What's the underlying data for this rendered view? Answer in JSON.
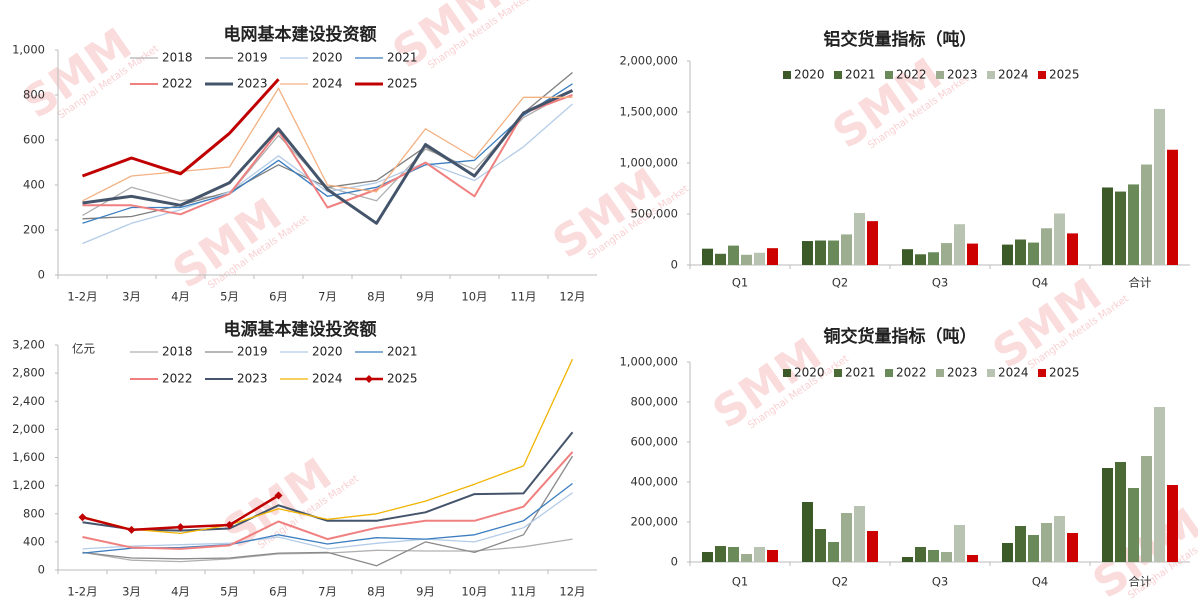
{
  "watermark": {
    "logo": "SMM",
    "text": "Shanghai Metals Market"
  },
  "chart_data": [
    {
      "type": "line",
      "title": "电网基本建设投资额",
      "categories": [
        "1-2月",
        "3月",
        "4月",
        "5月",
        "6月",
        "7月",
        "8月",
        "9月",
        "10月",
        "11月",
        "12月"
      ],
      "ylim": [
        0,
        1000
      ],
      "yticks": [
        0,
        200,
        400,
        600,
        800,
        {
          "value": 1000,
          "label": "1,000"
        }
      ],
      "series": [
        {
          "name": "2018",
          "color": "#b0b0b0",
          "values": [
            265,
            390,
            330,
            360,
            620,
            390,
            330,
            560,
            470,
            700,
            820
          ]
        },
        {
          "name": "2019",
          "color": "#7f7f7f",
          "values": [
            250,
            260,
            310,
            370,
            490,
            390,
            420,
            570,
            440,
            720,
            900
          ]
        },
        {
          "name": "2020",
          "color": "#b4cce8",
          "values": [
            140,
            230,
            290,
            370,
            530,
            370,
            410,
            500,
            420,
            570,
            760
          ]
        },
        {
          "name": "2021",
          "color": "#3c7ebf",
          "values": [
            230,
            300,
            300,
            360,
            510,
            350,
            390,
            490,
            510,
            710,
            850
          ]
        },
        {
          "name": "2022",
          "color": "#f08080",
          "line_width": 2,
          "values": [
            310,
            310,
            270,
            360,
            640,
            300,
            380,
            500,
            350,
            720,
            800
          ]
        },
        {
          "name": "2023",
          "color": "#44546a",
          "line_width": 3,
          "values": [
            320,
            350,
            310,
            410,
            650,
            380,
            230,
            580,
            440,
            720,
            820
          ]
        },
        {
          "name": "2024",
          "color": "#f4b183",
          "values": [
            330,
            440,
            460,
            480,
            830,
            400,
            370,
            650,
            520,
            790,
            790
          ]
        },
        {
          "name": "2025",
          "color": "#c00000",
          "line_width": 3,
          "values": [
            440,
            520,
            450,
            630,
            870,
            null,
            null,
            null,
            null,
            null,
            null
          ]
        }
      ]
    },
    {
      "type": "line",
      "title": "电源基本建设投资额",
      "y_label": "亿元",
      "categories": [
        "1-2月",
        "3月",
        "4月",
        "5月",
        "6月",
        "7月",
        "8月",
        "9月",
        "10月",
        "11月",
        "12月"
      ],
      "ylim": [
        0,
        3200
      ],
      "yticks": [
        0,
        400,
        800,
        {
          "value": 1200,
          "label": "1,200"
        },
        {
          "value": 1600,
          "label": "1,600"
        },
        {
          "value": 2000,
          "label": "2,000"
        },
        {
          "value": 2400,
          "label": "2,400"
        },
        {
          "value": 2800,
          "label": "2,800"
        },
        {
          "value": 3200,
          "label": "3,200"
        }
      ],
      "series": [
        {
          "name": "2018",
          "color": "#b0b0b0",
          "values": [
            250,
            140,
            120,
            160,
            230,
            240,
            280,
            270,
            270,
            330,
            440
          ]
        },
        {
          "name": "2019",
          "color": "#8a8a8a",
          "values": [
            250,
            170,
            160,
            170,
            240,
            250,
            60,
            400,
            250,
            500,
            1620
          ]
        },
        {
          "name": "2020",
          "color": "#b4cce8",
          "values": [
            300,
            340,
            360,
            380,
            470,
            300,
            380,
            440,
            400,
            600,
            1100
          ]
        },
        {
          "name": "2021",
          "color": "#3c7ebf",
          "values": [
            240,
            310,
            320,
            360,
            500,
            370,
            460,
            440,
            500,
            700,
            1230
          ]
        },
        {
          "name": "2022",
          "color": "#f08080",
          "line_width": 2,
          "values": [
            470,
            320,
            300,
            350,
            690,
            440,
            600,
            700,
            700,
            900,
            1680
          ]
        },
        {
          "name": "2023",
          "color": "#44546a",
          "line_width": 2,
          "values": [
            680,
            580,
            560,
            590,
            920,
            700,
            700,
            820,
            1080,
            1090,
            1960
          ]
        },
        {
          "name": "2024",
          "color": "#f0b400",
          "values": [
            760,
            580,
            520,
            640,
            870,
            720,
            800,
            980,
            1220,
            1480,
            3000
          ]
        },
        {
          "name": "2025",
          "color": "#c00000",
          "line_width": 2.5,
          "marker": "diamond",
          "values": [
            750,
            570,
            610,
            640,
            1060,
            null,
            null,
            null,
            null,
            null,
            null
          ]
        }
      ]
    },
    {
      "type": "bar",
      "title": "铝交货量指标（吨）",
      "categories": [
        "Q1",
        "Q2",
        "Q3",
        "Q4",
        "合计"
      ],
      "ylim": [
        0,
        2000000
      ],
      "yticks": [
        0,
        {
          "value": 500000,
          "label": "500,000"
        },
        {
          "value": 1000000,
          "label": "1,000,000"
        },
        {
          "value": 1500000,
          "label": "1,500,000"
        },
        {
          "value": 2000000,
          "label": "2,000,000"
        }
      ],
      "series": [
        {
          "name": "2020",
          "color": "#3b5a28",
          "values": [
            160000,
            235000,
            155000,
            200000,
            760000
          ]
        },
        {
          "name": "2021",
          "color": "#4b6a36",
          "values": [
            110000,
            240000,
            105000,
            250000,
            720000
          ]
        },
        {
          "name": "2022",
          "color": "#6b8a5a",
          "values": [
            190000,
            240000,
            125000,
            220000,
            790000
          ]
        },
        {
          "name": "2023",
          "color": "#9cad90",
          "values": [
            100000,
            300000,
            215000,
            360000,
            985000
          ]
        },
        {
          "name": "2024",
          "color": "#b9c3b1",
          "values": [
            120000,
            510000,
            400000,
            505000,
            1530000
          ]
        },
        {
          "name": "2025",
          "color": "#cc0000",
          "values": [
            165000,
            430000,
            210000,
            310000,
            1130000
          ]
        }
      ]
    },
    {
      "type": "bar",
      "title": "铜交货量指标（吨）",
      "categories": [
        "Q1",
        "Q2",
        "Q3",
        "Q4",
        "合计"
      ],
      "ylim": [
        0,
        1000000
      ],
      "yticks": [
        0,
        {
          "value": 200000,
          "label": "200,000"
        },
        {
          "value": 400000,
          "label": "400,000"
        },
        {
          "value": 600000,
          "label": "600,000"
        },
        {
          "value": 800000,
          "label": "800,000"
        },
        {
          "value": 1000000,
          "label": "1,000,000"
        }
      ],
      "series": [
        {
          "name": "2020",
          "color": "#3b5a28",
          "values": [
            50000,
            300000,
            25000,
            95000,
            470000
          ]
        },
        {
          "name": "2021",
          "color": "#4b6a36",
          "values": [
            80000,
            165000,
            75000,
            180000,
            500000
          ]
        },
        {
          "name": "2022",
          "color": "#6b8a5a",
          "values": [
            75000,
            100000,
            60000,
            135000,
            370000
          ]
        },
        {
          "name": "2023",
          "color": "#9cad90",
          "values": [
            40000,
            245000,
            50000,
            195000,
            530000
          ]
        },
        {
          "name": "2024",
          "color": "#b9c3b1",
          "values": [
            75000,
            280000,
            185000,
            230000,
            775000
          ]
        },
        {
          "name": "2025",
          "color": "#cc0000",
          "values": [
            60000,
            155000,
            35000,
            145000,
            385000
          ]
        }
      ]
    }
  ]
}
